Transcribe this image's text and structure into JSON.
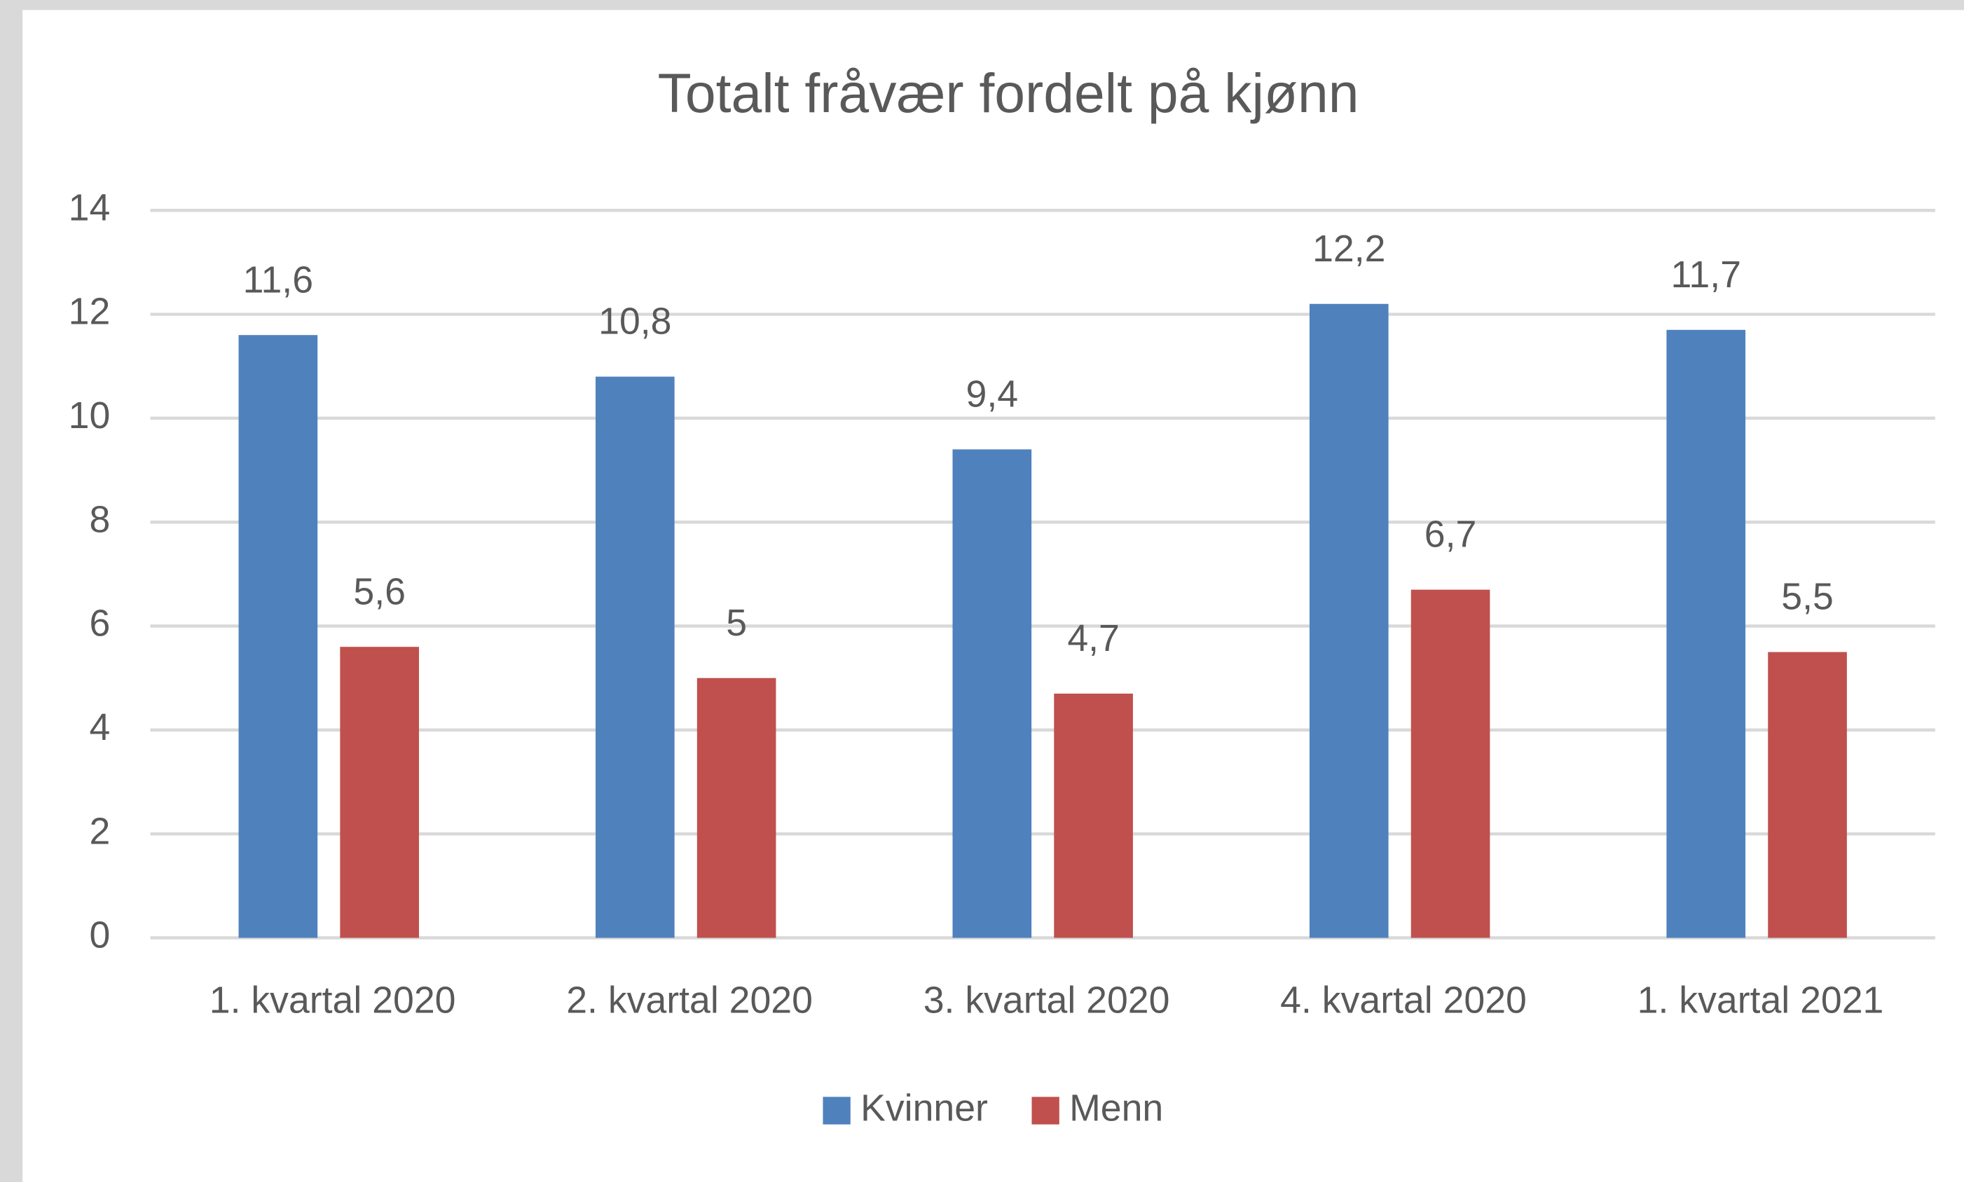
{
  "chart_data": {
    "type": "bar",
    "title": "Totalt fråvær fordelt på kjønn",
    "categories": [
      "1. kvartal 2020",
      "2. kvartal 2020",
      "3. kvartal 2020",
      "4. kvartal 2020",
      "1. kvartal 2021"
    ],
    "series": [
      {
        "name": "Kvinner",
        "color": "#4f81bd",
        "values": [
          11.6,
          10.8,
          9.4,
          12.2,
          11.7
        ],
        "value_labels": [
          "11,6",
          "10,8",
          "9,4",
          "12,2",
          "11,7"
        ]
      },
      {
        "name": "Menn",
        "color": "#c0504d",
        "values": [
          5.6,
          5,
          4.7,
          6.7,
          5.5
        ],
        "value_labels": [
          "5,6",
          "5",
          "4,7",
          "6,7",
          "5,5"
        ]
      }
    ],
    "ylim": [
      0,
      14
    ],
    "yticks": [
      0,
      2,
      4,
      6,
      8,
      10,
      12,
      14
    ],
    "grid": true,
    "legend": "bottom"
  }
}
